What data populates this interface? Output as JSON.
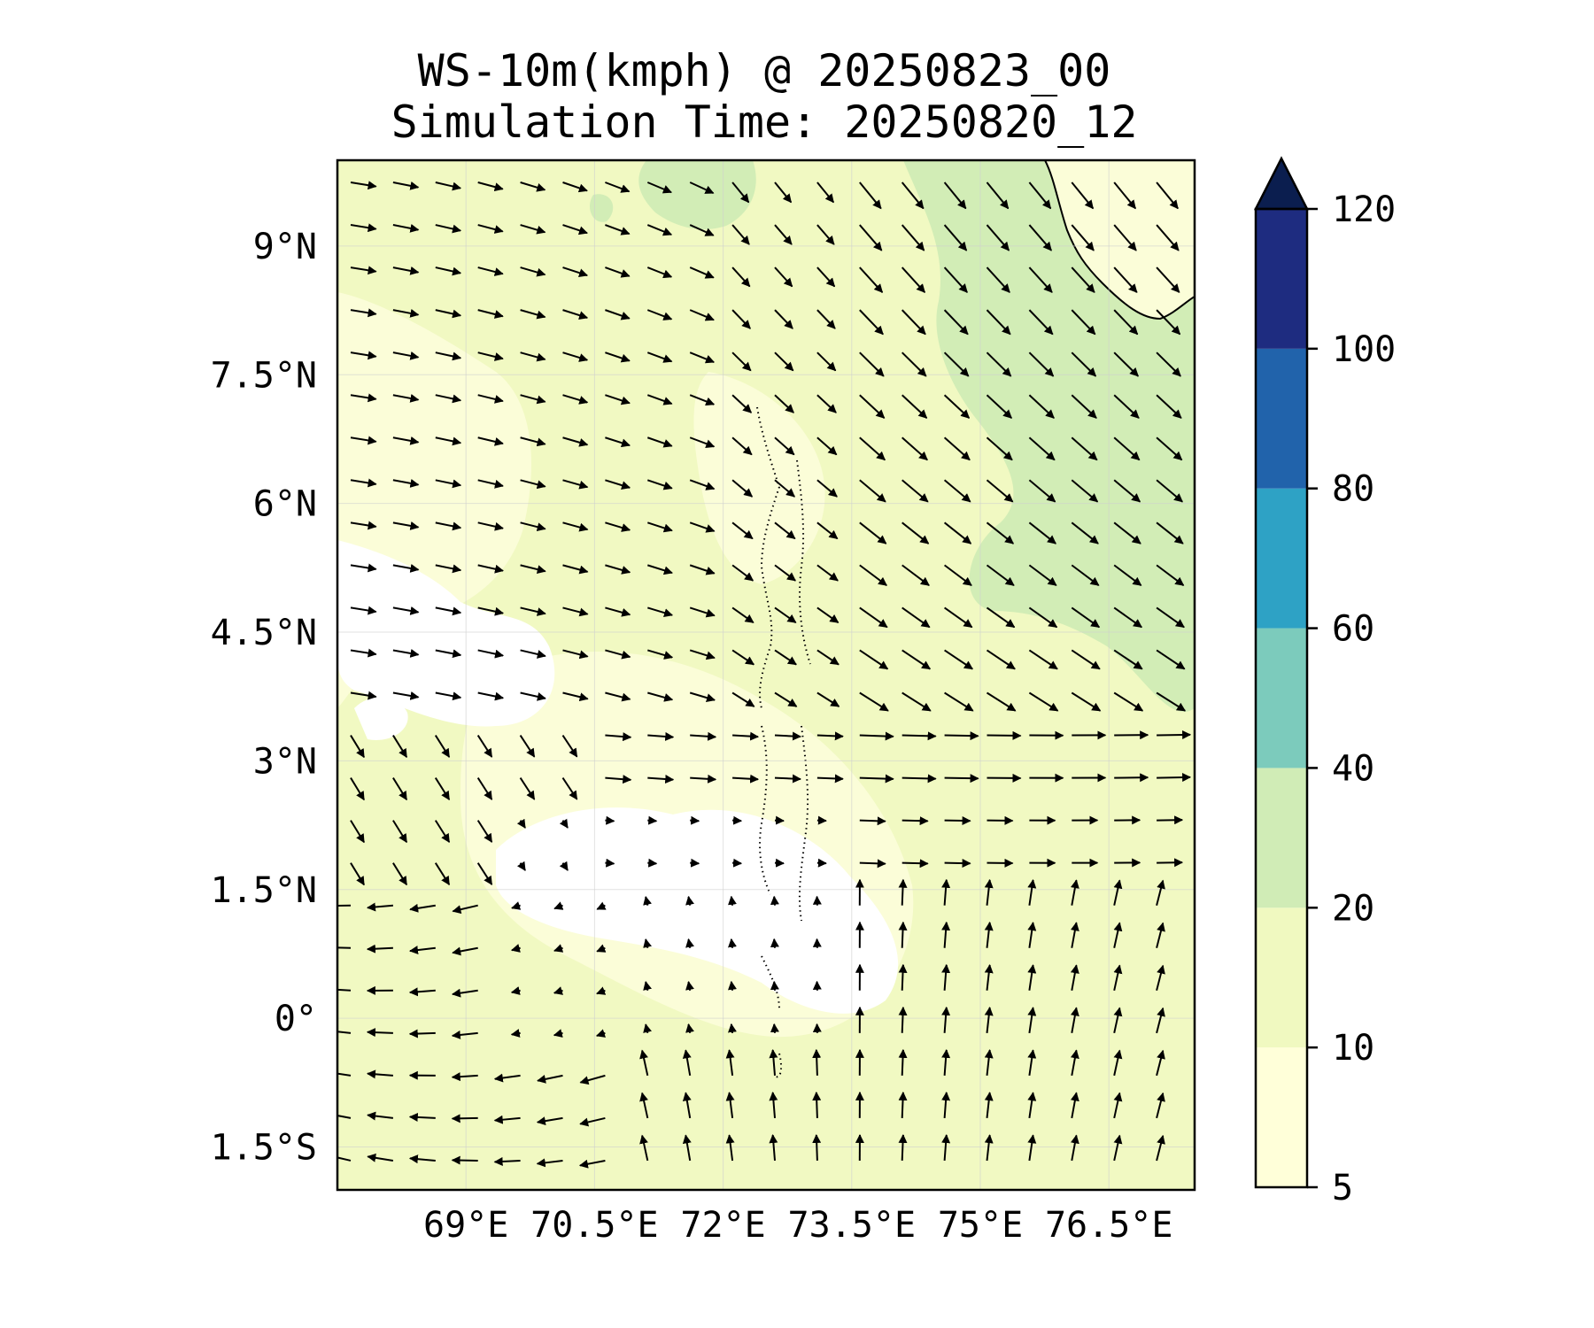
{
  "title": {
    "line1": "WS-10m(kmph) @ 20250823_00",
    "line2": "Simulation Time: 20250820_12"
  },
  "map": {
    "lon_range": [
      67.5,
      77.5
    ],
    "lat_range": [
      -2.0,
      10.0
    ],
    "lon_ticks": [
      {
        "value": 69,
        "label": "69°E"
      },
      {
        "value": 70.5,
        "label": "70.5°E"
      },
      {
        "value": 72,
        "label": "72°E"
      },
      {
        "value": 73.5,
        "label": "73.5°E"
      },
      {
        "value": 75,
        "label": "75°E"
      },
      {
        "value": 76.5,
        "label": "76.5°E"
      }
    ],
    "lat_ticks": [
      {
        "value": 9,
        "label": "9°N"
      },
      {
        "value": 7.5,
        "label": "7.5°N"
      },
      {
        "value": 6,
        "label": "6°N"
      },
      {
        "value": 4.5,
        "label": "4.5°N"
      },
      {
        "value": 3,
        "label": "3°N"
      },
      {
        "value": 1.5,
        "label": "1.5°N"
      },
      {
        "value": 0,
        "label": "0°"
      },
      {
        "value": -1.5,
        "label": "1.5°S"
      }
    ],
    "gridlines": true,
    "vectors": "10 m wind direction arrows on a regular lat/lon grid"
  },
  "colorbar": {
    "levels": [
      {
        "label": "5",
        "value": 5,
        "color": "#ffffd9"
      },
      {
        "label": "10",
        "value": 10,
        "color": "#f0f9c0"
      },
      {
        "label": "20",
        "value": 20,
        "color": "#d0ecb6"
      },
      {
        "label": "40",
        "value": 40,
        "color": "#7ccbbc"
      },
      {
        "label": "60",
        "value": 60,
        "color": "#2ea2c5"
      },
      {
        "label": "80",
        "value": 80,
        "color": "#2163ab"
      },
      {
        "label": "100",
        "value": 100,
        "color": "#1e2c80"
      },
      {
        "label": "120",
        "value": 120,
        "color": "#0b1e4f"
      }
    ],
    "extend": "max"
  }
}
